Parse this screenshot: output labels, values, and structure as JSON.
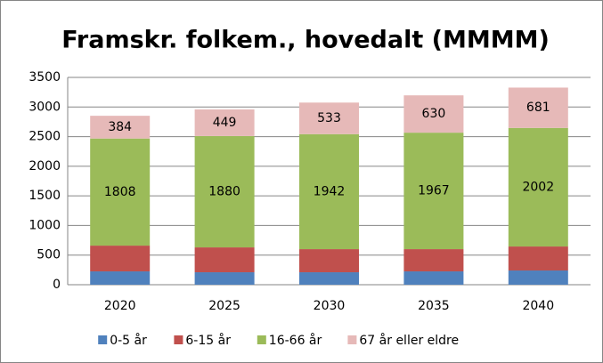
{
  "chart_data": {
    "type": "stacked_bar",
    "title": "Framskr. folkem., hovedalt (MMMM)",
    "categories": [
      "2020",
      "2025",
      "2030",
      "2035",
      "2040"
    ],
    "series": [
      {
        "name": "0-5 år",
        "color": "#4f81bd",
        "values": [
          225,
          210,
          210,
          225,
          240
        ],
        "labels": false
      },
      {
        "name": "6-15 år",
        "color": "#c0504d",
        "values": [
          435,
          420,
          390,
          375,
          405
        ],
        "labels": false
      },
      {
        "name": "16-66 år",
        "color": "#9bbb59",
        "values": [
          1808,
          1880,
          1942,
          1967,
          2002
        ],
        "labels": true
      },
      {
        "name": "67 år eller eldre",
        "color": "#e6b9b8",
        "values": [
          384,
          449,
          533,
          630,
          681
        ],
        "labels": true
      }
    ],
    "ylim": [
      0,
      3500
    ],
    "yticks": [
      0,
      500,
      1000,
      1500,
      2000,
      2500,
      3000,
      3500
    ],
    "grid": true,
    "legend": "bottom"
  }
}
